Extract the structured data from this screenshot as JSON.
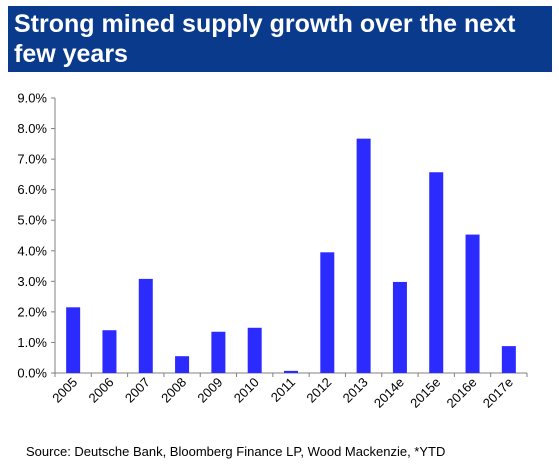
{
  "title": "Strong mined supply growth over the next few years",
  "source": "Source: Deutsche Bank, Bloomberg Finance LP, Wood Mackenzie, *YTD",
  "colors": {
    "banner": "#0a3a8c",
    "bar": "#2b2bff",
    "axis": "#808080"
  },
  "chart_data": {
    "type": "bar",
    "categories": [
      "2005",
      "2006",
      "2007",
      "2008",
      "2009",
      "2010",
      "2011",
      "2012",
      "2013",
      "2014e",
      "2015e",
      "2016e",
      "2017e"
    ],
    "values": [
      2.15,
      1.4,
      3.08,
      0.55,
      1.35,
      1.48,
      0.07,
      3.95,
      7.67,
      2.98,
      6.57,
      4.53,
      0.88
    ],
    "ylim": [
      0,
      9
    ],
    "yticks": [
      "0.0%",
      "1.0%",
      "2.0%",
      "3.0%",
      "4.0%",
      "5.0%",
      "6.0%",
      "7.0%",
      "8.0%",
      "9.0%"
    ],
    "xlabel": "",
    "ylabel": "",
    "grid": false,
    "legend": "none"
  }
}
